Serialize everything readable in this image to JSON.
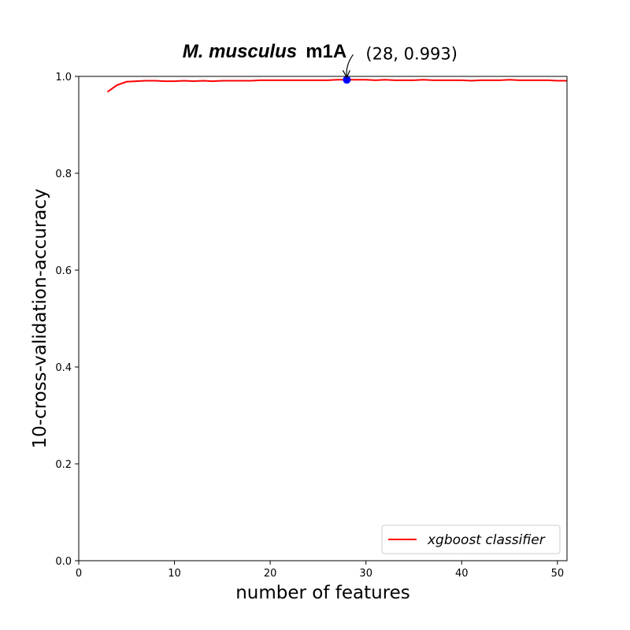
{
  "chart_data": {
    "type": "line",
    "title": {
      "species": "M. musculus",
      "modification": "m1A"
    },
    "xlabel": "number of features",
    "ylabel": "10-cross-validation-accuracy",
    "xlim": [
      0,
      51
    ],
    "ylim": [
      0.0,
      1.0
    ],
    "xticks": [
      0,
      10,
      20,
      30,
      40,
      50
    ],
    "xtick_labels": [
      "0",
      "10",
      "20",
      "30",
      "40",
      "50"
    ],
    "yticks": [
      0.0,
      0.2,
      0.4,
      0.6,
      0.8,
      1.0
    ],
    "ytick_labels": [
      "0.0",
      "0.2",
      "0.4",
      "0.6",
      "0.8",
      "1.0"
    ],
    "grid": false,
    "legend_position": "lower-right",
    "series": [
      {
        "name": "xgboost classifier",
        "color": "#ff0000",
        "x": [
          3,
          4,
          5,
          6,
          7,
          8,
          9,
          10,
          11,
          12,
          13,
          14,
          15,
          16,
          17,
          18,
          19,
          20,
          21,
          22,
          23,
          24,
          25,
          26,
          27,
          28,
          29,
          30,
          31,
          32,
          33,
          34,
          35,
          36,
          37,
          38,
          39,
          40,
          41,
          42,
          43,
          44,
          45,
          46,
          47,
          48,
          49,
          50,
          51
        ],
        "y": [
          0.968,
          0.982,
          0.989,
          0.99,
          0.991,
          0.991,
          0.99,
          0.99,
          0.991,
          0.99,
          0.991,
          0.99,
          0.991,
          0.991,
          0.991,
          0.991,
          0.992,
          0.992,
          0.992,
          0.992,
          0.992,
          0.992,
          0.992,
          0.992,
          0.993,
          0.993,
          0.993,
          0.993,
          0.992,
          0.993,
          0.992,
          0.992,
          0.992,
          0.993,
          0.992,
          0.992,
          0.992,
          0.992,
          0.991,
          0.992,
          0.992,
          0.992,
          0.993,
          0.992,
          0.992,
          0.992,
          0.992,
          0.991,
          0.991
        ]
      }
    ],
    "highlight": {
      "x": 28,
      "y": 0.993,
      "color": "#0000ff",
      "label": "(28, 0.993)"
    }
  }
}
